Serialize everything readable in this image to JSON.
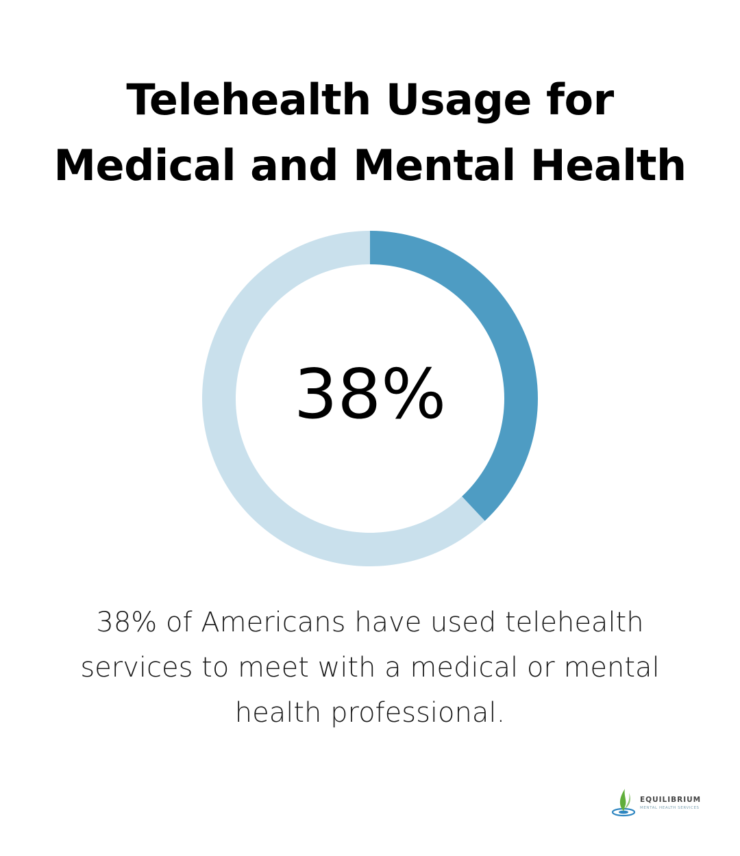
{
  "title": {
    "line1": "Telehealth Usage for",
    "line2": "Medical and Mental Health"
  },
  "chart_data": {
    "type": "pie",
    "variant": "donut",
    "values": [
      38,
      62
    ],
    "unit": "%",
    "center_label": "38%",
    "colors": {
      "filled": "#4e9cc3",
      "remainder": "#c9e0ec"
    }
  },
  "description": "38% of Americans have used telehealth services to meet with a medical or mental health professional.",
  "logo": {
    "name": "EQUILIBRIUM",
    "tagline": "MENTAL HEALTH SERVICES",
    "colors": {
      "leaf": "#5fae3a",
      "drop": "#2e86c1"
    }
  }
}
